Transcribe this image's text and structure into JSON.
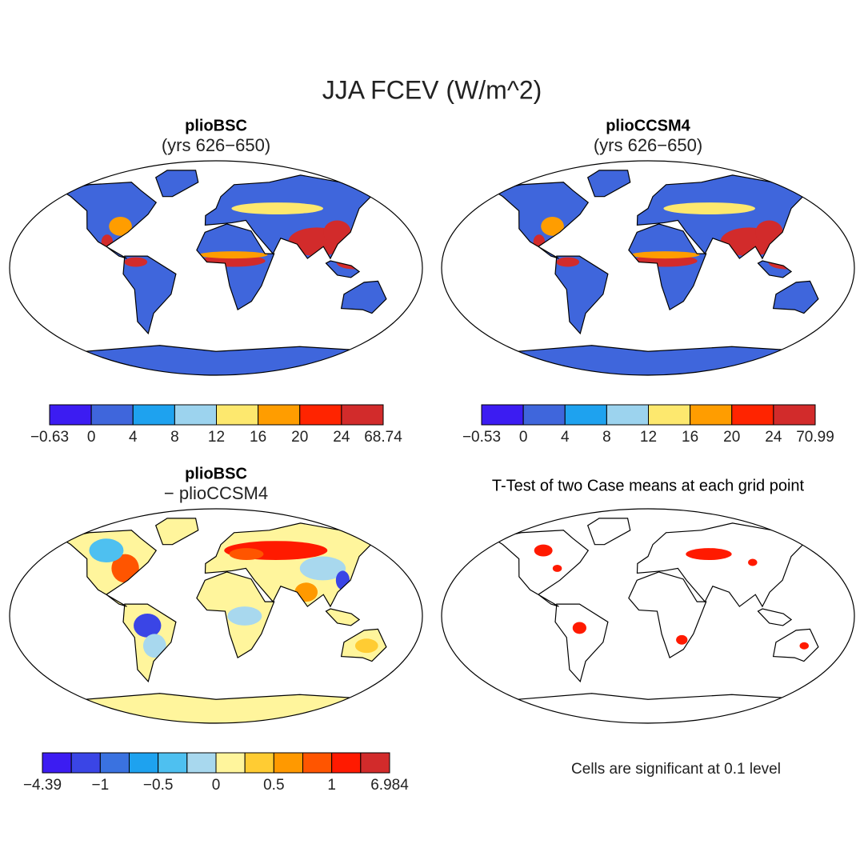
{
  "title": "JJA FCEV (W/m^2)",
  "panels": [
    {
      "title": "plioBSC",
      "subtitle": "(yrs 626−650)",
      "colorbar": {
        "colors": [
          "#3c1cf2",
          "#3f66dc",
          "#1ea2ef",
          "#9cd3ee",
          "#fde86e",
          "#ff9d00",
          "#ff2400",
          "#d22b2b"
        ],
        "labels": [
          "−0.63",
          "0",
          "4",
          "8",
          "12",
          "16",
          "20",
          "24",
          "68.74"
        ]
      }
    },
    {
      "title": "plioCCSM4",
      "subtitle": "(yrs 626−650)",
      "colorbar": {
        "colors": [
          "#3c1cf2",
          "#3f66dc",
          "#1ea2ef",
          "#9cd3ee",
          "#fde86e",
          "#ff9d00",
          "#ff2400",
          "#d22b2b"
        ],
        "labels": [
          "−0.53",
          "0",
          "4",
          "8",
          "12",
          "16",
          "20",
          "24",
          "70.99"
        ]
      }
    },
    {
      "title": "plioBSC",
      "subtitle": "− plioCCSM4",
      "colorbar": {
        "colors": [
          "#3c1cf2",
          "#3a45e6",
          "#3a72e0",
          "#1ea2ef",
          "#4ec0f0",
          "#a8d8ee",
          "#fff59c",
          "#ffcc33",
          "#ff9900",
          "#ff5500",
          "#ff1a00",
          "#d22b2b"
        ],
        "labels": [
          "−4.39",
          "−1",
          "−0.5",
          "0",
          "0.5",
          "1",
          "6.984"
        ]
      }
    },
    {
      "title": "T-Test of two Case means at each grid point",
      "note": "Cells are significant at 0.1 level"
    }
  ]
}
